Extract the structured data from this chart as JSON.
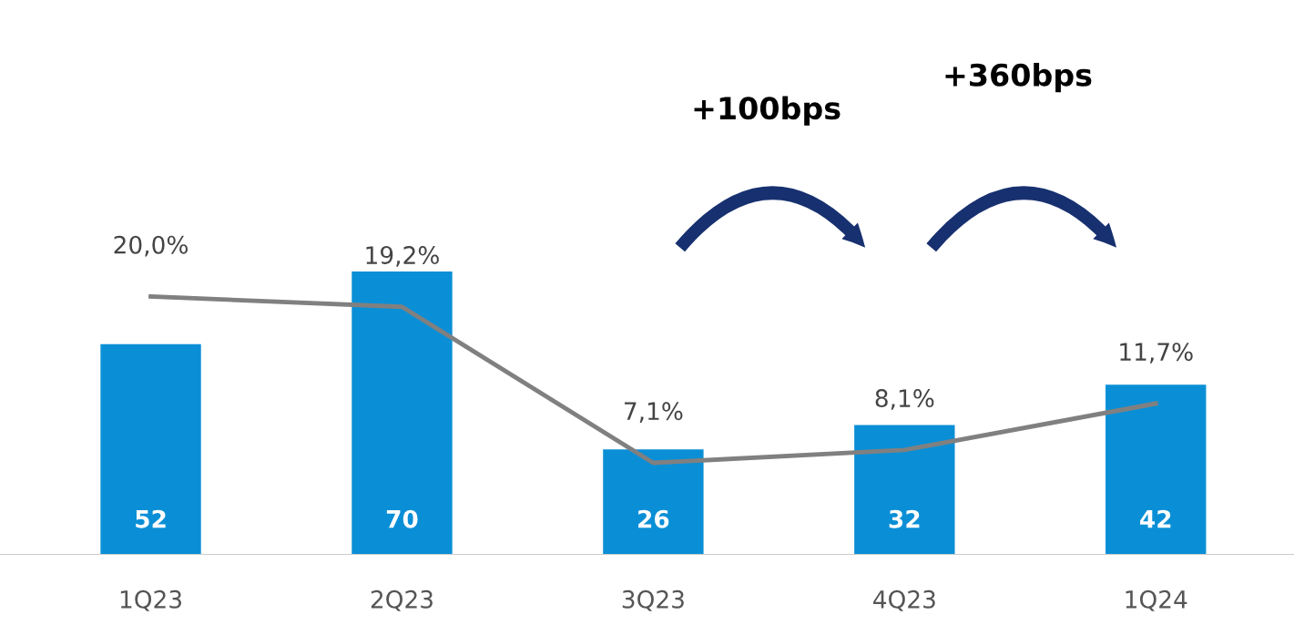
{
  "chart_data": {
    "type": "bar",
    "categories": [
      "1Q23",
      "2Q23",
      "3Q23",
      "4Q23",
      "1Q24"
    ],
    "series": [
      {
        "color": "#0a8fd6",
        "values": [
          52,
          70,
          26,
          32,
          42
        ],
        "data_labels": true
      },
      {
        "type": "line",
        "axis": "y2",
        "color": "#808080",
        "values": [
          20.0,
          19.2,
          7.1,
          8.1,
          11.7
        ],
        "value_labels": [
          "20,0%",
          "19,2%",
          "7,1%",
          "8,1%",
          "11,7%"
        ],
        "marker": "none",
        "line_style": "solid"
      }
    ],
    "tick_labels": "x",
    "annotations": [
      "+100bps",
      "+360bps"
    ]
  }
}
